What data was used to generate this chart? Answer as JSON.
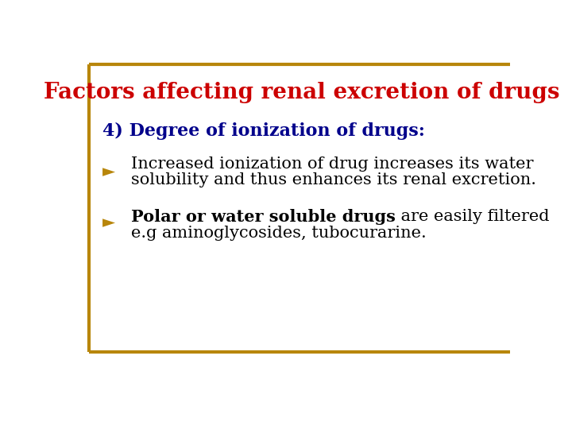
{
  "title": "Factors affecting renal excretion of drugs",
  "title_color": "#CC0000",
  "title_fontsize": 20,
  "title_fontweight": "bold",
  "subtitle": "4) Degree of ionization of drugs:",
  "subtitle_bold_part": "4) Degree of ionization of drugs",
  "subtitle_colon": ":",
  "subtitle_color": "#00008B",
  "subtitle_fontsize": 16,
  "subtitle_fontweight": "bold",
  "bullet_marker": "►",
  "bullet_color": "#B8860B",
  "background_color": "#FFFFFF",
  "border_color": "#B8860B",
  "bullet1_line1": "Increased ionization of drug increases its water",
  "bullet1_line2": "solubility and thus enhances its renal excretion.",
  "bullet2_bold": "Polar or water soluble drugs",
  "bullet2_normal": " are easily filtered",
  "bullet2_line2": "e.g aminoglycosides, tubocurarine.",
  "body_fontsize": 15,
  "body_color": "#000000"
}
